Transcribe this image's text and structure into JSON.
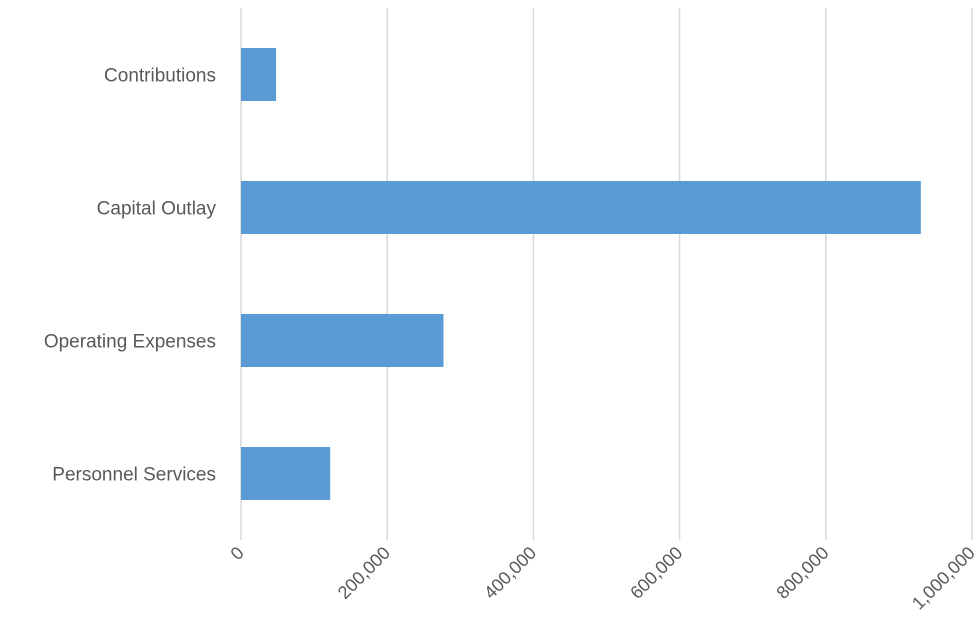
{
  "chart_data": {
    "type": "bar",
    "orientation": "horizontal",
    "categories": [
      "Contributions",
      "Capital Outlay",
      "Operating Expenses",
      "Personnel Services"
    ],
    "values": [
      48000,
      930000,
      277000,
      122000
    ],
    "xlim": [
      0,
      1000000
    ],
    "xticks": [
      0,
      200000,
      400000,
      600000,
      800000,
      1000000
    ],
    "xtick_labels": [
      "0",
      "200,000",
      "400,000",
      "600,000",
      "800,000",
      "1,000,000"
    ],
    "title": "",
    "xlabel": "",
    "ylabel": "",
    "grid": "vertical",
    "legend": "none",
    "bar_color": "#5b9bd5",
    "grid_color": "#d9d9d9",
    "label_color": "#595959"
  }
}
